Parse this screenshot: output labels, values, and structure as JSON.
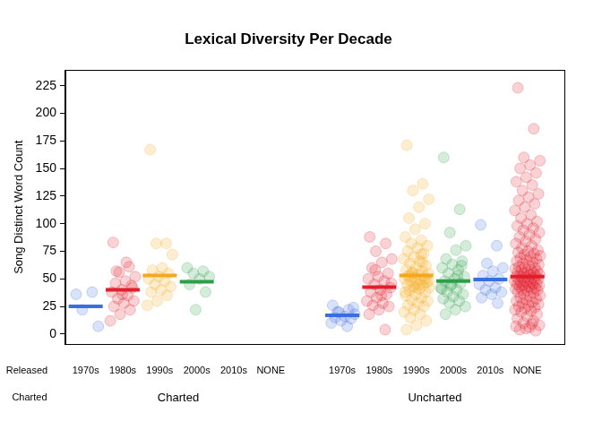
{
  "chart_data": {
    "type": "strip",
    "title": "Lexical Diversity Per Decade",
    "y_label": "Song Distinct Word Count",
    "ylim": [
      -9,
      239
    ],
    "yticks": [
      0,
      25,
      50,
      75,
      100,
      125,
      150,
      175,
      200,
      225
    ],
    "grid": false,
    "x_row_labels": [
      "Released",
      "Charted"
    ],
    "groups": [
      {
        "name": "Charted",
        "series": [
          {
            "name": "1970s",
            "color": "#3a6fe0",
            "mean": 25,
            "values": [
              36,
              38,
              22,
              7
            ]
          },
          {
            "name": "1980s",
            "color": "#e3202b",
            "mean": 40,
            "values": [
              83,
              61,
              56,
              52,
              48,
              46,
              44,
              40,
              38,
              35,
              32,
              30,
              28,
              25,
              22,
              18,
              12,
              65,
              57,
              42,
              36
            ]
          },
          {
            "name": "1990s",
            "color": "#f5a81d",
            "mean": 53,
            "values": [
              167,
              82,
              82,
              72,
              60,
              58,
              55,
              52,
              50,
              48,
              45,
              43,
              40,
              38,
              35,
              30,
              26
            ]
          },
          {
            "name": "2000s",
            "color": "#2e9e4a",
            "mean": 47.5,
            "values": [
              60,
              57,
              55,
              52,
              50,
              45,
              38,
              22
            ]
          },
          {
            "name": "2010s",
            "color": "#3a6fe0",
            "mean": null,
            "values": []
          },
          {
            "name": "NONE",
            "color": "#e3202b",
            "mean": null,
            "values": []
          }
        ]
      },
      {
        "name": "Uncharted",
        "series": [
          {
            "name": "1970s",
            "color": "#3a6fe0",
            "mean": 17,
            "values": [
              26,
              22,
              20,
              18,
              16,
              15,
              14,
              12,
              10,
              7,
              20,
              24
            ]
          },
          {
            "name": "1980s",
            "color": "#e3202b",
            "mean": 42.5,
            "values": [
              88,
              82,
              75,
              68,
              65,
              60,
              55,
              52,
              50,
              48,
              45,
              42,
              40,
              38,
              36,
              33,
              30,
              28,
              26,
              25,
              22,
              18,
              4,
              58,
              46,
              35
            ]
          },
          {
            "name": "1990s",
            "color": "#f5a81d",
            "mean": 53,
            "values": [
              171,
              136,
              130,
              122,
              115,
              105,
              100,
              95,
              88,
              85,
              82,
              80,
              78,
              75,
              73,
              70,
              68,
              66,
              64,
              62,
              60,
              58,
              57,
              56,
              55,
              54,
              53,
              52,
              51,
              50,
              49,
              48,
              47,
              46,
              45,
              44,
              43,
              42,
              41,
              40,
              38,
              36,
              35,
              33,
              31,
              30,
              28,
              26,
              25,
              22,
              20,
              18,
              15,
              12,
              8,
              4,
              65,
              55,
              48,
              45,
              52,
              50,
              42,
              38,
              72
            ]
          },
          {
            "name": "2000s",
            "color": "#2e9e4a",
            "mean": 48,
            "values": [
              160,
              113,
              92,
              80,
              76,
              68,
              66,
              63,
              60,
              58,
              55,
              52,
              50,
              48,
              46,
              44,
              42,
              40,
              38,
              36,
              34,
              32,
              30,
              28,
              25,
              22,
              18,
              62,
              45,
              41,
              53
            ]
          },
          {
            "name": "2010s",
            "color": "#3a6fe0",
            "mean": 49.5,
            "values": [
              99,
              80,
              64,
              60,
              57,
              53,
              50,
              48,
              45,
              42,
              40,
              38,
              36,
              33,
              28
            ]
          },
          {
            "name": "NONE",
            "color": "#e3202b",
            "mean": 52,
            "values": [
              223,
              186,
              160,
              157,
              153,
              150,
              146,
              142,
              138,
              135,
              130,
              127,
              124,
              121,
              118,
              115,
              112,
              108,
              105,
              102,
              100,
              98,
              96,
              94,
              92,
              90,
              88,
              86,
              84,
              82,
              80,
              78,
              76,
              75,
              74,
              73,
              72,
              71,
              70,
              69,
              68,
              67,
              66,
              65,
              64,
              63,
              62,
              61,
              60,
              60,
              59,
              58,
              58,
              57,
              56,
              56,
              55,
              55,
              54,
              54,
              53,
              53,
              52,
              52,
              51,
              51,
              50,
              50,
              49,
              49,
              48,
              48,
              47,
              47,
              46,
              46,
              45,
              45,
              44,
              44,
              43,
              43,
              42,
              42,
              41,
              41,
              40,
              40,
              39,
              38,
              37,
              36,
              35,
              34,
              33,
              32,
              31,
              30,
              29,
              28,
              27,
              26,
              25,
              24,
              23,
              22,
              21,
              20,
              18,
              16,
              14,
              12,
              10,
              8,
              6,
              4,
              3,
              5,
              7,
              9
            ]
          }
        ]
      }
    ]
  }
}
